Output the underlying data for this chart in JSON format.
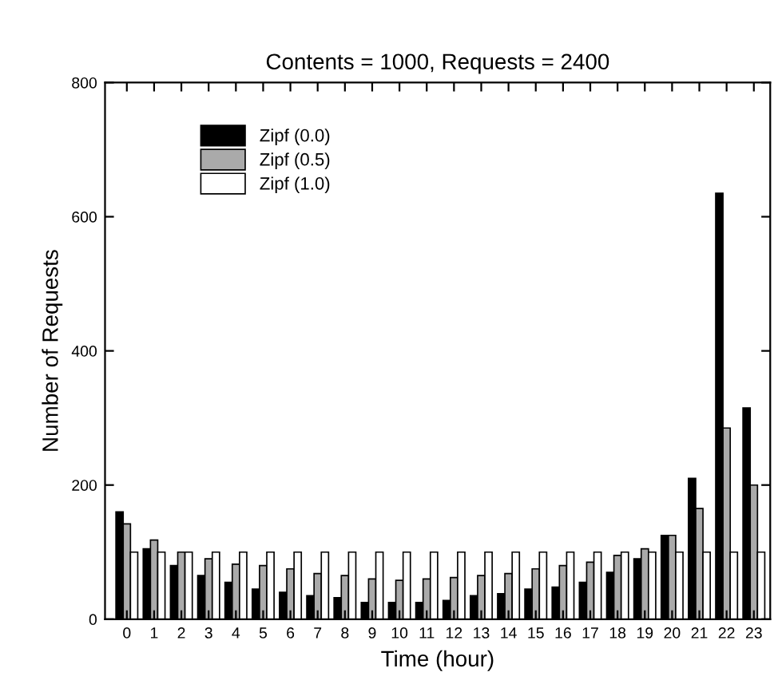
{
  "chart_data": {
    "type": "bar",
    "title": "Contents = 1000, Requests = 2400",
    "xlabel": "Time (hour)",
    "ylabel": "Number of Requests",
    "categories": [
      "0",
      "1",
      "2",
      "3",
      "4",
      "5",
      "6",
      "7",
      "8",
      "9",
      "10",
      "11",
      "12",
      "13",
      "14",
      "15",
      "16",
      "17",
      "18",
      "19",
      "20",
      "21",
      "22",
      "23"
    ],
    "series": [
      {
        "name": "Zipf (0.0)",
        "color": "#000000",
        "values": [
          160,
          105,
          80,
          65,
          55,
          45,
          40,
          35,
          32,
          25,
          25,
          25,
          28,
          35,
          38,
          45,
          48,
          55,
          70,
          90,
          125,
          210,
          635,
          315
        ]
      },
      {
        "name": "Zipf (0.5)",
        "color": "#aaaaaa",
        "values": [
          142,
          118,
          100,
          90,
          82,
          80,
          75,
          68,
          65,
          60,
          58,
          60,
          62,
          65,
          68,
          75,
          80,
          85,
          95,
          105,
          125,
          165,
          285,
          200
        ]
      },
      {
        "name": "Zipf (1.0)",
        "color": "#ffffff",
        "values": [
          100,
          100,
          100,
          100,
          100,
          100,
          100,
          100,
          100,
          100,
          100,
          100,
          100,
          100,
          100,
          100,
          100,
          100,
          100,
          100,
          100,
          100,
          100,
          100
        ]
      }
    ],
    "ylim": [
      0,
      800
    ],
    "yticks": [
      0,
      200,
      400,
      600,
      800
    ],
    "grid": false,
    "legend": "top left"
  }
}
